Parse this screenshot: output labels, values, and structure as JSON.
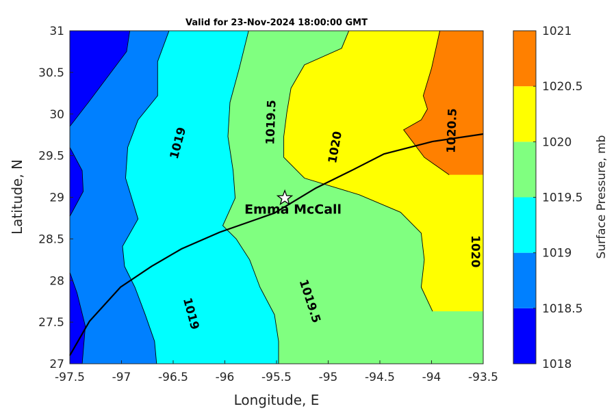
{
  "chart_data": {
    "type": "heatmap",
    "subtype": "filled-contour-map",
    "title": "Valid for 23-Nov-2024 18:00:00 GMT",
    "xlabel": "Longitude, E",
    "ylabel": "Latitude, N",
    "xlim": [
      -97.5,
      -93.5
    ],
    "ylim": [
      27,
      31
    ],
    "xticks": [
      "-97.5",
      "-97",
      "-96.5",
      "-96",
      "-95.5",
      "-95",
      "-94.5",
      "-94",
      "-93.5"
    ],
    "yticks": [
      "27",
      "27.5",
      "28",
      "28.5",
      "29",
      "29.5",
      "30",
      "30.5",
      "31"
    ],
    "colorbar": {
      "label": "Surface Pressure, mb",
      "levels": [
        1018,
        1018.5,
        1019,
        1019.5,
        1020,
        1020.5,
        1021
      ],
      "ticks": [
        "1018",
        "1018.5",
        "1019",
        "1019.5",
        "1020",
        "1020.5",
        "1021"
      ],
      "colors": [
        "#0000ff",
        "#0080ff",
        "#00ffff",
        "#80ff80",
        "#ffff00",
        "#ff8000",
        "#ff0000"
      ]
    },
    "contours": [
      {
        "level": 1019,
        "points": [
          [
            -96.54,
            31
          ],
          [
            -96.65,
            30.63
          ],
          [
            -96.65,
            30.22
          ],
          [
            -96.84,
            29.93
          ],
          [
            -96.94,
            29.6
          ],
          [
            -96.96,
            29.23
          ],
          [
            -96.84,
            28.74
          ],
          [
            -96.99,
            28.41
          ],
          [
            -96.97,
            28.17
          ],
          [
            -96.87,
            27.92
          ],
          [
            -96.77,
            27.59
          ],
          [
            -96.68,
            27.27
          ],
          [
            -96.66,
            27
          ]
        ]
      },
      {
        "level": 1019.5,
        "points": [
          [
            -95.77,
            31
          ],
          [
            -95.86,
            30.55
          ],
          [
            -95.95,
            30.14
          ],
          [
            -95.97,
            29.73
          ],
          [
            -95.92,
            29.32
          ],
          [
            -95.9,
            28.99
          ],
          [
            -96.02,
            28.66
          ],
          [
            -95.89,
            28.5
          ],
          [
            -95.76,
            28.25
          ],
          [
            -95.66,
            27.92
          ],
          [
            -95.52,
            27.59
          ],
          [
            -95.48,
            27.27
          ],
          [
            -95.48,
            27
          ]
        ]
      },
      {
        "level": 1020,
        "points": [
          [
            -94.8,
            31
          ],
          [
            -94.87,
            30.79
          ],
          [
            -95.23,
            30.59
          ],
          [
            -95.36,
            30.31
          ],
          [
            -95.4,
            30.02
          ],
          [
            -95.43,
            29.73
          ],
          [
            -95.43,
            29.48
          ],
          [
            -95.23,
            29.23
          ],
          [
            -94.7,
            29.03
          ],
          [
            -94.3,
            28.82
          ],
          [
            -94.1,
            28.57
          ],
          [
            -94.07,
            28.25
          ],
          [
            -94.1,
            27.92
          ],
          [
            -93.99,
            27.63
          ]
        ]
      },
      {
        "level": 1020.5,
        "points": [
          [
            -93.92,
            31
          ],
          [
            -94.0,
            30.55
          ],
          [
            -94.08,
            30.22
          ],
          [
            -94.04,
            30.06
          ],
          [
            -94.1,
            29.93
          ],
          [
            -94.27,
            29.81
          ],
          [
            -94.07,
            29.48
          ],
          [
            -93.83,
            29.27
          ]
        ]
      }
    ],
    "low_regions_1018": [
      [
        [
          -97.5,
          31
        ],
        [
          -96.92,
          31
        ],
        [
          -96.95,
          30.75
        ],
        [
          -97.12,
          30.47
        ],
        [
          -97.32,
          30.14
        ],
        [
          -97.5,
          29.85
        ]
      ],
      [
        [
          -97.5,
          29.6
        ],
        [
          -97.38,
          29.32
        ],
        [
          -97.37,
          29.07
        ],
        [
          -97.5,
          28.77
        ]
      ],
      [
        [
          -97.5,
          28.1
        ],
        [
          -97.43,
          27.85
        ],
        [
          -97.35,
          27.45
        ],
        [
          -97.38,
          27
        ],
        [
          -97.5,
          27
        ]
      ]
    ],
    "contour_labels": [
      {
        "text": "1019",
        "lon": -96.45,
        "lat": 29.65,
        "angle": -75
      },
      {
        "text": "1019.5",
        "lon": -95.55,
        "lat": 29.9,
        "angle": -88
      },
      {
        "text": "1020",
        "lon": -94.93,
        "lat": 29.6,
        "angle": -80
      },
      {
        "text": "1020.5",
        "lon": -93.8,
        "lat": 29.8,
        "angle": -88
      },
      {
        "text": "1020",
        "lon": -93.58,
        "lat": 28.35,
        "angle": 90
      },
      {
        "text": "1019.5",
        "lon": -95.18,
        "lat": 27.75,
        "angle": 72
      },
      {
        "text": "1019",
        "lon": -96.33,
        "lat": 27.6,
        "angle": 75
      }
    ],
    "coastline": [
      [
        -97.5,
        27.1
      ],
      [
        -97.31,
        27.51
      ],
      [
        -97.01,
        27.92
      ],
      [
        -96.71,
        28.17
      ],
      [
        -96.42,
        28.38
      ],
      [
        -96.05,
        28.58
      ],
      [
        -95.52,
        28.81
      ],
      [
        -95.12,
        29.11
      ],
      [
        -94.76,
        29.33
      ],
      [
        -94.46,
        29.52
      ],
      [
        -93.99,
        29.67
      ],
      [
        -93.5,
        29.76
      ]
    ],
    "marker": {
      "name": "Emma McCall",
      "lon": -95.42,
      "lat": 28.99
    }
  }
}
